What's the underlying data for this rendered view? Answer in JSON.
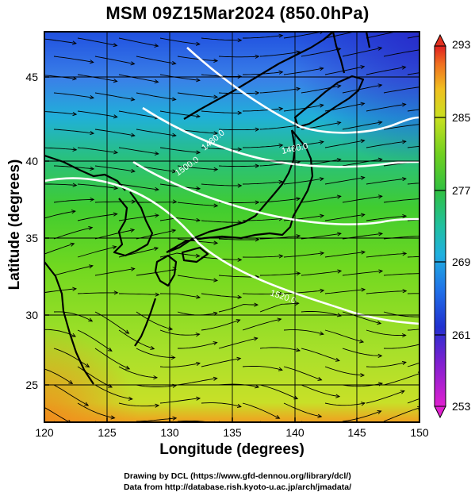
{
  "title": "MSM 09Z15Mar2024 (850.0hPa)",
  "x_axis": {
    "label": "Longitude (degrees)",
    "range": [
      120,
      150
    ],
    "ticks": [
      "120",
      "125",
      "130",
      "135",
      "140",
      "145",
      "150"
    ]
  },
  "y_axis": {
    "label": "Latitude  (degrees)",
    "range": [
      22.5,
      48
    ],
    "ticks": [
      "25",
      "30",
      "35",
      "40",
      "45"
    ]
  },
  "colorbar": {
    "range": [
      253,
      293
    ],
    "ticks": [
      "293",
      "285",
      "277",
      "269",
      "261",
      "253"
    ]
  },
  "contours": {
    "color": "#ffffff",
    "labels": [
      "1520.0",
      "1500.0",
      "1480.0",
      "1460.0"
    ]
  },
  "map": {
    "field": "temperature",
    "overlay": "wind streamlines",
    "coastline_color": "#000000",
    "grid": true
  },
  "credits": {
    "line1": "Drawing by DCL (https://www.gfd-dennou.org/library/dcl/)",
    "line2": "Data from http://database.rish.kyoto-u.ac.jp/arch/jmadata/"
  }
}
